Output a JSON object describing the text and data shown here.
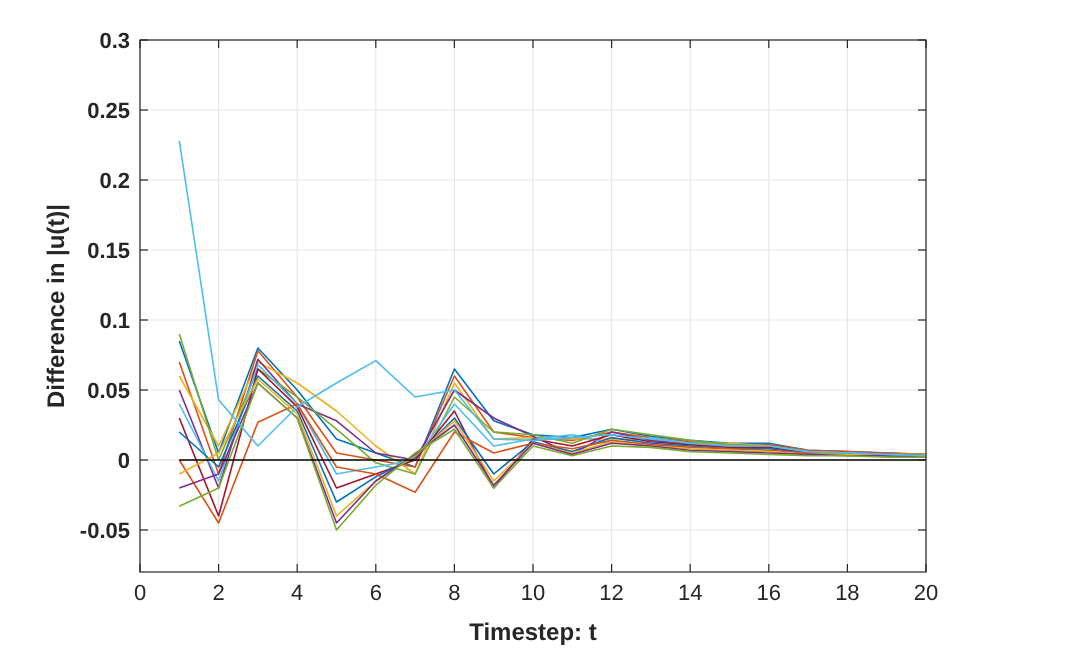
{
  "chart_data": {
    "type": "line",
    "xlabel": "Timestep: t",
    "ylabel": "Difference in |u(t)|",
    "xlim": [
      0,
      20
    ],
    "ylim": [
      -0.08,
      0.3
    ],
    "xticks": [
      0,
      2,
      4,
      6,
      8,
      10,
      12,
      14,
      16,
      18,
      20
    ],
    "yticks": [
      -0.05,
      0,
      0.05,
      0.1,
      0.15,
      0.2,
      0.25,
      0.3
    ],
    "grid": true,
    "x": [
      1,
      2,
      3,
      4,
      5,
      6,
      7,
      8,
      9,
      10,
      11,
      12,
      13,
      14,
      15,
      16,
      17,
      18,
      19,
      20
    ],
    "series": [
      {
        "color": "#0072bd",
        "values": [
          0.085,
          0.005,
          0.08,
          0.05,
          0.015,
          0.005,
          -0.005,
          0.065,
          0.028,
          0.018,
          0.016,
          0.022,
          0.017,
          0.014,
          0.012,
          0.012,
          0.007,
          0.006,
          0.005,
          0.004
        ]
      },
      {
        "color": "#d95319",
        "values": [
          0.07,
          -0.01,
          0.078,
          0.045,
          0.005,
          0.0,
          -0.005,
          0.06,
          0.02,
          0.016,
          0.014,
          0.02,
          0.016,
          0.013,
          0.011,
          0.011,
          0.007,
          0.006,
          0.005,
          0.004
        ]
      },
      {
        "color": "#edb120",
        "values": [
          0.06,
          0.01,
          0.07,
          0.055,
          0.035,
          0.01,
          -0.01,
          0.055,
          0.015,
          0.016,
          0.015,
          0.015,
          0.015,
          0.012,
          0.012,
          0.01,
          0.006,
          0.005,
          0.004,
          0.004
        ]
      },
      {
        "color": "#7e2f8e",
        "values": [
          0.05,
          -0.02,
          0.072,
          0.04,
          0.028,
          0.005,
          0.0,
          0.05,
          0.03,
          0.017,
          0.004,
          0.02,
          0.014,
          0.012,
          0.01,
          0.01,
          0.006,
          0.005,
          0.004,
          0.003
        ]
      },
      {
        "color": "#77ac30",
        "values": [
          0.09,
          0.0,
          0.065,
          0.045,
          0.022,
          -0.002,
          -0.01,
          0.045,
          0.02,
          0.018,
          0.012,
          0.022,
          0.018,
          0.014,
          0.011,
          0.01,
          0.006,
          0.005,
          0.004,
          0.003
        ]
      },
      {
        "color": "#4dbeee",
        "values": [
          0.04,
          -0.015,
          0.068,
          0.04,
          -0.01,
          -0.005,
          0.0,
          0.04,
          0.01,
          0.015,
          0.018,
          0.012,
          0.016,
          0.012,
          0.01,
          0.009,
          0.006,
          0.005,
          0.004,
          0.003
        ]
      },
      {
        "color": "#a2142f",
        "values": [
          0.03,
          -0.04,
          0.065,
          0.038,
          -0.02,
          -0.01,
          0.0,
          0.035,
          -0.02,
          0.015,
          0.01,
          0.018,
          0.013,
          0.011,
          0.009,
          0.009,
          0.005,
          0.004,
          0.004,
          0.003
        ]
      },
      {
        "color": "#0072bd",
        "values": [
          0.02,
          -0.005,
          0.06,
          0.035,
          -0.03,
          -0.012,
          0.002,
          0.03,
          -0.01,
          0.013,
          0.006,
          0.016,
          0.012,
          0.01,
          0.008,
          0.008,
          0.005,
          0.004,
          0.003,
          0.003
        ]
      },
      {
        "color": "#d95319",
        "values": [
          0.0,
          -0.045,
          0.027,
          0.04,
          -0.005,
          -0.01,
          -0.023,
          0.02,
          0.005,
          0.012,
          0.008,
          0.014,
          0.011,
          0.009,
          0.008,
          0.007,
          0.005,
          0.004,
          0.003,
          0.002
        ]
      },
      {
        "color": "#edb120",
        "values": [
          -0.01,
          0.005,
          0.058,
          0.033,
          -0.04,
          -0.015,
          0.003,
          0.028,
          -0.015,
          0.012,
          0.005,
          0.013,
          0.01,
          0.008,
          0.007,
          0.006,
          0.004,
          0.004,
          0.003,
          0.002
        ]
      },
      {
        "color": "#7e2f8e",
        "values": [
          -0.02,
          -0.01,
          0.055,
          0.03,
          -0.045,
          -0.015,
          0.004,
          0.025,
          -0.018,
          0.012,
          0.004,
          0.012,
          0.01,
          0.007,
          0.006,
          0.005,
          0.004,
          0.003,
          0.003,
          0.002
        ]
      },
      {
        "color": "#77ac30",
        "values": [
          -0.033,
          -0.02,
          0.055,
          0.03,
          -0.05,
          -0.018,
          0.005,
          0.022,
          -0.02,
          0.01,
          0.003,
          0.01,
          0.009,
          0.006,
          0.005,
          0.004,
          0.003,
          0.003,
          0.002,
          0.002
        ]
      },
      {
        "color": "#4dbeee",
        "values": [
          0.228,
          0.043,
          0.01,
          0.038,
          0.055,
          0.071,
          0.045,
          0.05,
          0.015,
          0.014,
          0.016,
          0.018,
          0.015,
          0.012,
          0.01,
          0.01,
          0.006,
          0.005,
          0.004,
          0.003
        ]
      },
      {
        "color": "#000000",
        "values": [
          0,
          0,
          0,
          0,
          0,
          0,
          0,
          0,
          0,
          0,
          0,
          0,
          0,
          0,
          0,
          0,
          0,
          0,
          0,
          0
        ]
      }
    ]
  }
}
